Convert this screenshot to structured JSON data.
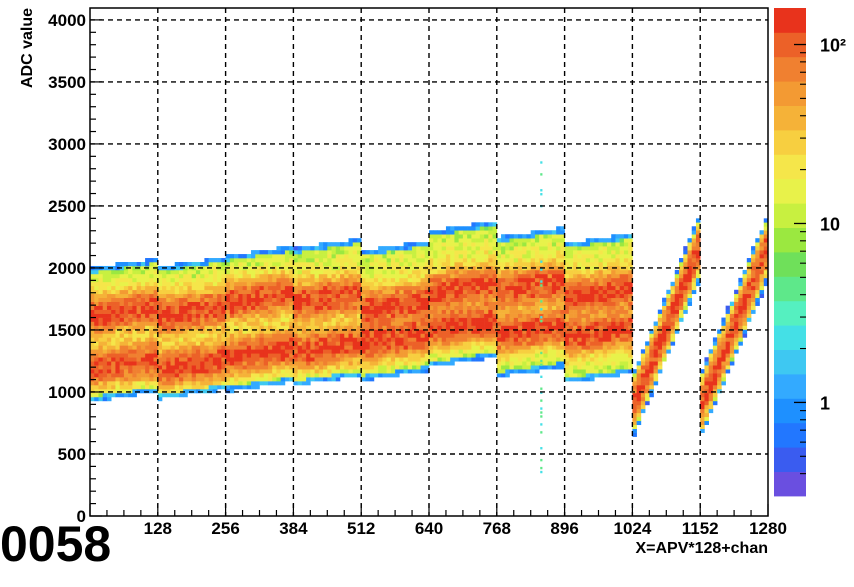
{
  "corner_label": "0058",
  "chart_data": {
    "type": "heatmap",
    "title": "",
    "xlabel": "X=APV*128+chan",
    "ylabel": "ADC value",
    "xlim": [
      0,
      1280
    ],
    "ylim": [
      0,
      4096
    ],
    "x_ticks": [
      128,
      256,
      384,
      512,
      640,
      768,
      896,
      1024,
      1152,
      1280
    ],
    "y_ticks": [
      0,
      500,
      1000,
      1500,
      2000,
      2500,
      3000,
      3500,
      4000
    ],
    "grid": true,
    "z_scale": "log",
    "z_ticks": [
      {
        "value": 1,
        "label": "1"
      },
      {
        "value": 10,
        "label": "10"
      },
      {
        "value": 100,
        "label": "10²"
      }
    ],
    "z_range": [
      0.3,
      160
    ],
    "colors": {
      "low": "#6a4fe0",
      "palette_note_free": "#3399ff",
      "high": "#e8331c"
    },
    "segments": [
      {
        "x_range": [
          0,
          128
        ],
        "envelope_low": 1000,
        "envelope_high": 2000,
        "peaks": [
          1230,
          1650
        ],
        "type": "band"
      },
      {
        "x_range": [
          128,
          256
        ],
        "envelope_low": 1020,
        "envelope_high": 2010,
        "peaks": [
          1220,
          1650
        ],
        "type": "band"
      },
      {
        "x_range": [
          256,
          384
        ],
        "envelope_low": 1080,
        "envelope_high": 2100,
        "peaks": [
          1320,
          1760
        ],
        "type": "band"
      },
      {
        "x_range": [
          384,
          512
        ],
        "envelope_low": 1130,
        "envelope_high": 2160,
        "peaks": [
          1360,
          1760
        ],
        "type": "band"
      },
      {
        "x_range": [
          512,
          640
        ],
        "envelope_low": 1170,
        "envelope_high": 2140,
        "peaks": [
          1430,
          1700
        ],
        "type": "band"
      },
      {
        "x_range": [
          640,
          768
        ],
        "envelope_low": 1280,
        "envelope_high": 2300,
        "peaks": [
          1540,
          1840
        ],
        "type": "band"
      },
      {
        "x_range": [
          768,
          896
        ],
        "envelope_low": 1200,
        "envelope_high": 2250,
        "peaks": [
          1500,
          1850
        ],
        "type": "band"
      },
      {
        "x_range": [
          896,
          1024
        ],
        "envelope_low": 1150,
        "envelope_high": 2200,
        "peaks": [
          1480,
          1800
        ],
        "type": "band"
      },
      {
        "x_range": [
          1024,
          1152
        ],
        "start": [
          650,
          1100
        ],
        "end": [
          1950,
          2400
        ],
        "type": "ramp"
      },
      {
        "x_range": [
          1152,
          1280
        ],
        "start": [
          650,
          1100
        ],
        "end": [
          1950,
          2400
        ],
        "type": "ramp"
      }
    ],
    "spike": {
      "x": 850,
      "y_range": [
        300,
        2850
      ]
    }
  }
}
